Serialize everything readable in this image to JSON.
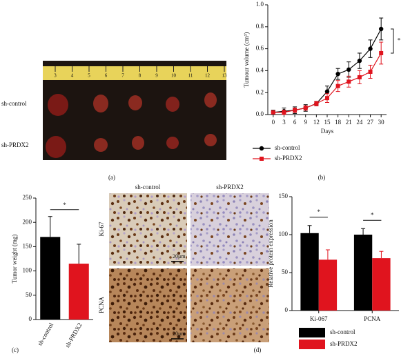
{
  "photo_panels": {
    "tumor_photo": {
      "row_labels": [
        "sh-control",
        "sh-PRDX2"
      ],
      "ruler_labels": [
        "3",
        "4",
        "5",
        "6",
        "7",
        "8",
        "9",
        "10",
        "11",
        "12",
        "13"
      ],
      "panel_label": "(a)"
    },
    "ihc": {
      "column_labels": [
        "sh-control",
        "sh-PRDX2"
      ],
      "row_labels": [
        "Ki-67",
        "PCNA"
      ],
      "scale_labels": [
        "20μm",
        "20μm"
      ]
    }
  },
  "chart_data": [
    {
      "type": "line",
      "panel_label": "(b)",
      "x_label": "Days",
      "y_label": "Tumour volume (cm³)",
      "annotation": "*",
      "x": [
        0,
        3,
        6,
        9,
        12,
        15,
        18,
        21,
        24,
        27,
        30
      ],
      "xlim": [
        -1.5,
        31.5
      ],
      "xticks": [
        0,
        3,
        6,
        9,
        12,
        15,
        18,
        21,
        24,
        27,
        30
      ],
      "ylim": [
        0,
        1
      ],
      "yticks": [
        {
          "value": 0,
          "label": "0.0"
        },
        0.2,
        0.4,
        0.6,
        0.8,
        {
          "value": 1,
          "label": "1.0"
        }
      ],
      "series": [
        {
          "name": "sh-control",
          "color": "#000000",
          "marker": "circle",
          "values": [
            0.02,
            0.03,
            0.04,
            0.06,
            0.1,
            0.21,
            0.37,
            0.41,
            0.49,
            0.6,
            0.78
          ],
          "errors": [
            0.02,
            0.03,
            0.03,
            0.03,
            0.02,
            0.05,
            0.05,
            0.07,
            0.07,
            0.08,
            0.1
          ]
        },
        {
          "name": "sh-PRDX2",
          "color": "#e0141e",
          "marker": "square",
          "values": [
            0.02,
            0.02,
            0.04,
            0.06,
            0.1,
            0.15,
            0.26,
            0.3,
            0.34,
            0.39,
            0.56
          ],
          "errors": [
            0.01,
            0.02,
            0.02,
            0.02,
            0.02,
            0.04,
            0.05,
            0.05,
            0.06,
            0.06,
            0.1
          ]
        }
      ]
    },
    {
      "type": "bar",
      "panel_label": "(c)",
      "y_label": "Tumor weight (mg)",
      "annotation": "*",
      "categories": [
        "sh-control",
        "sh-PRDX2"
      ],
      "values": [
        170,
        115
      ],
      "errors": [
        42,
        40
      ],
      "colors": [
        "#000000",
        "#e0141e"
      ],
      "ylim": [
        0,
        250
      ],
      "yticks": [
        0,
        50,
        100,
        150,
        200,
        250
      ]
    },
    {
      "type": "grouped_bar",
      "panel_label": "(d)",
      "y_label": "Relative protein expression",
      "annotation": "*",
      "categories": [
        "Ki-067",
        "PCNA"
      ],
      "ylim": [
        0,
        150
      ],
      "yticks": [
        0,
        50,
        100,
        150
      ],
      "series": [
        {
          "name": "sh-control",
          "color": "#000000",
          "values": [
            102,
            100
          ],
          "errors": [
            10,
            8
          ]
        },
        {
          "name": "sh-PRDX2",
          "color": "#e0141e",
          "values": [
            67,
            69
          ],
          "errors": [
            13,
            9
          ]
        }
      ]
    }
  ]
}
